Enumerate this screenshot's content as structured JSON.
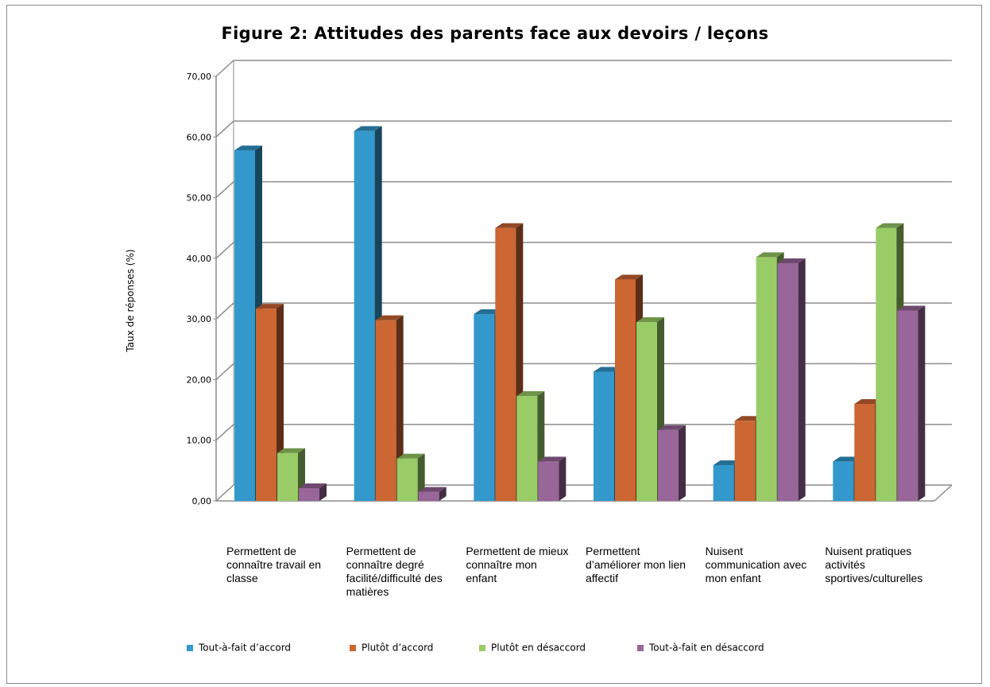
{
  "chart_data": {
    "type": "bar",
    "title": "Figure 2: Attitudes des parents face aux devoirs / leçons",
    "ylabel": "Taux de réponses (%)",
    "xlabel": "",
    "ylim": [
      0,
      70
    ],
    "yticks": [
      "0,00",
      "10,00",
      "20,00",
      "30,00",
      "40,00",
      "50,00",
      "60,00",
      "70,00"
    ],
    "grid": true,
    "legend_position": "bottom",
    "categories": [
      "Permettent de connaître travail en classe",
      "Permettent de connaître degré facilité/difficulté des matières",
      "Permettent de mieux connaître mon enfant",
      "Permettent d’améliorer mon lien affectif",
      "Nuisent communication avec mon enfant",
      "Nuisent pratiques activités sportives/culturelles"
    ],
    "series": [
      {
        "name": "Tout-à-fait d’accord",
        "color": "#3399cc",
        "values": [
          57.8,
          61.0,
          30.8,
          21.3,
          5.9,
          6.5
        ]
      },
      {
        "name": "Plutôt d’accord",
        "color": "#cc6633",
        "values": [
          31.7,
          29.8,
          45.0,
          36.5,
          13.2,
          16.0
        ]
      },
      {
        "name": "Plutôt en désaccord",
        "color": "#99cc66",
        "values": [
          7.9,
          7.0,
          17.3,
          29.5,
          40.2,
          45.0
        ]
      },
      {
        "name": "Tout-à-fait en désaccord",
        "color": "#996699",
        "values": [
          2.1,
          1.5,
          6.5,
          11.7,
          39.2,
          31.4
        ]
      }
    ]
  }
}
